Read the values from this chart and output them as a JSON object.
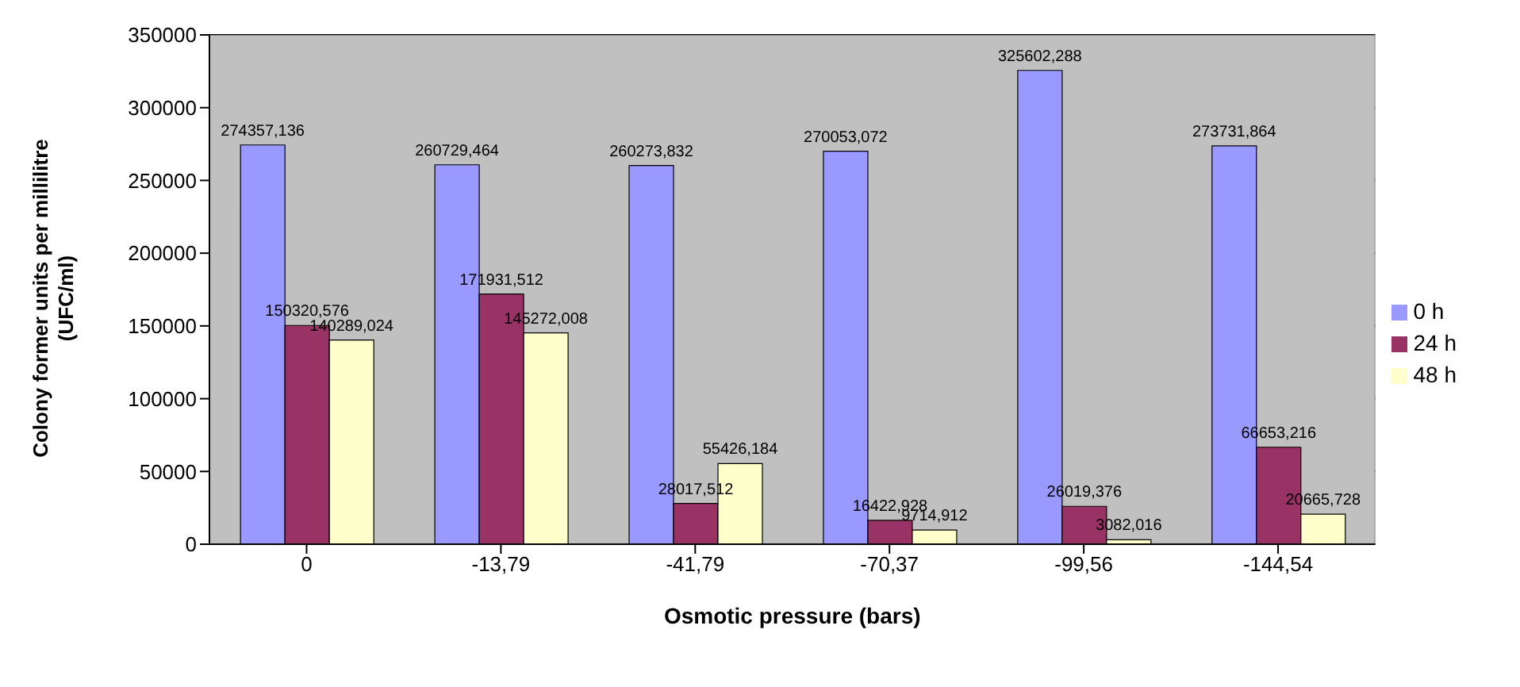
{
  "chart_data": {
    "type": "bar",
    "xlabel": "Osmotic pressure (bars)",
    "ylabel": "Colony former units per millilitre\n(UFC/ml)",
    "categories": [
      "0",
      "-13,79",
      "-41,79",
      "-70,37",
      "-99,56",
      "-144,54"
    ],
    "series": [
      {
        "name": "0 h",
        "color": "#9999ff",
        "values": [
          274357.136,
          260729.464,
          260273.832,
          270053.072,
          325602.288,
          273731.864
        ],
        "value_labels": [
          "274357,136",
          "260729,464",
          "260273,832",
          "270053,072",
          "325602,288",
          "273731,864"
        ]
      },
      {
        "name": "24 h",
        "color": "#993366",
        "values": [
          150320.576,
          171931.512,
          28017.512,
          16422.928,
          26019.376,
          66653.216
        ],
        "value_labels": [
          "150320,576",
          "171931,512",
          "28017,512",
          "16422,928",
          "26019,376",
          "66653,216"
        ]
      },
      {
        "name": "48 h",
        "color": "#ffffcc",
        "values": [
          140289.024,
          145272.008,
          55426.184,
          9714.912,
          3082.016,
          20665.728
        ],
        "value_labels": [
          "140289,024",
          "145272,008",
          "55426,184",
          "9714,912",
          "3082,016",
          "20665,728"
        ]
      }
    ],
    "ylim": [
      0,
      350000
    ],
    "yticks": [
      0,
      50000,
      100000,
      150000,
      200000,
      250000,
      300000,
      350000
    ],
    "grid": "y",
    "legend": "right"
  }
}
